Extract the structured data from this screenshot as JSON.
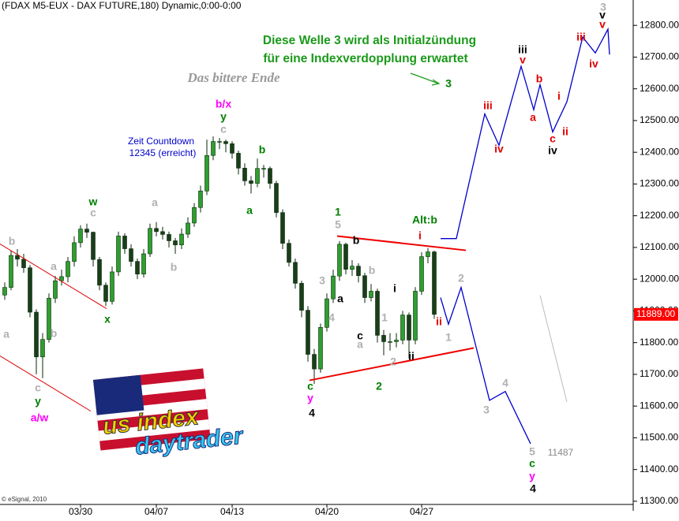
{
  "chart_data": {
    "type": "candlestick",
    "title": "(FDAX M5-EUX - DAX FUTURE,180) Dynamic,0:00-0:00",
    "categories": [
      null,
      null,
      null,
      null,
      null,
      null,
      null,
      null,
      null,
      null,
      null,
      null,
      "03/30",
      null,
      null,
      null,
      null,
      null,
      null,
      null,
      null,
      null,
      null,
      null,
      "04/07",
      null,
      null,
      null,
      null,
      null,
      null,
      null,
      null,
      null,
      null,
      null,
      "04/13",
      null,
      null,
      null,
      null,
      null,
      null,
      null,
      null,
      null,
      null,
      null,
      null,
      null,
      null,
      "04/20",
      null,
      null,
      null,
      null,
      null,
      null,
      null,
      null,
      null,
      null,
      null,
      null,
      null,
      null,
      "04/27",
      null,
      null
    ],
    "open": [
      11950,
      11974,
      12075,
      12063,
      12036,
      11896,
      11755,
      11810,
      11940,
      11995,
      12008,
      12056,
      12115,
      12158,
      12148,
      12062,
      11981,
      11930,
      12023,
      12136,
      12096,
      12056,
      12016,
      12080,
      12160,
      12150,
      12141,
      12121,
      12108,
      12142,
      12177,
      12226,
      12278,
      12390,
      12434,
      12434,
      12427,
      12397,
      12350,
      12310,
      12302,
      12349,
      12349,
      12302,
      12210,
      12113,
      12053,
      11987,
      11902,
      11763,
      11717,
      11848,
      11938,
      12010,
      12110,
      12031,
      12041,
      12011,
      11942,
      11962,
      11823,
      11803,
      11803,
      11808,
      11887,
      11808,
      11962,
      12071,
      12086
    ],
    "high": [
      11990,
      12090,
      12095,
      12080,
      12045,
      11905,
      11830,
      11955,
      12010,
      12030,
      12070,
      12135,
      12170,
      12175,
      12150,
      12070,
      11990,
      12040,
      12150,
      12145,
      12110,
      12065,
      12095,
      12175,
      12180,
      12165,
      12150,
      12130,
      12160,
      12195,
      12240,
      12295,
      12440,
      12450,
      12445,
      12440,
      12435,
      12405,
      12365,
      12325,
      12380,
      12360,
      12355,
      12310,
      12220,
      12125,
      12065,
      11995,
      11915,
      11780,
      11860,
      11955,
      12030,
      12120,
      12115,
      12060,
      12050,
      12020,
      11985,
      11970,
      11840,
      11830,
      11830,
      11900,
      11895,
      11975,
      12085,
      12098,
      12090
    ],
    "low": [
      11935,
      11965,
      12040,
      12020,
      11880,
      11700,
      11688,
      11800,
      11925,
      11980,
      11990,
      12040,
      12100,
      12130,
      12040,
      11965,
      11915,
      11920,
      12010,
      12080,
      12040,
      12000,
      12005,
      12070,
      12135,
      12125,
      12100,
      12080,
      12095,
      12130,
      12165,
      12210,
      12265,
      12375,
      12410,
      12400,
      12380,
      12330,
      12295,
      12270,
      12290,
      12320,
      12285,
      12195,
      12095,
      12040,
      11970,
      11880,
      11740,
      11670,
      11705,
      11835,
      11925,
      11995,
      12015,
      12010,
      11990,
      11925,
      11930,
      11800,
      11760,
      11775,
      11785,
      11795,
      11750,
      11795,
      11950,
      12050,
      11875
    ],
    "close": [
      11974,
      12075,
      12063,
      12036,
      11896,
      11755,
      11810,
      11940,
      11995,
      12008,
      12056,
      12115,
      12158,
      12148,
      12062,
      11981,
      11930,
      12023,
      12136,
      12096,
      12056,
      12016,
      12080,
      12160,
      12150,
      12141,
      12121,
      12108,
      12142,
      12177,
      12226,
      12278,
      12390,
      12434,
      12434,
      12427,
      12397,
      12350,
      12310,
      12302,
      12349,
      12349,
      12302,
      12210,
      12113,
      12053,
      11987,
      11902,
      11763,
      11717,
      11848,
      11938,
      12010,
      12110,
      12031,
      12041,
      12011,
      11942,
      11962,
      11823,
      11803,
      11803,
      11808,
      11887,
      11808,
      11962,
      12071,
      12086,
      11889
    ],
    "up_color": "#2f9e2f",
    "down_color": "#1a3d1a",
    "ylim": [
      11270,
      12880
    ],
    "yticks": [
      {
        "value": 11300,
        "label": "11300.00"
      },
      {
        "value": 11400,
        "label": "11400.00"
      },
      {
        "value": 11500,
        "label": "11500.00"
      },
      {
        "value": 11600,
        "label": "11600.00"
      },
      {
        "value": 11700,
        "label": "11700.00"
      },
      {
        "value": 11800,
        "label": "11800.00"
      },
      {
        "value": 11900,
        "label": "11900.00"
      },
      {
        "value": 12000,
        "label": "12000.00"
      },
      {
        "value": 12100,
        "label": "12100.00"
      },
      {
        "value": 12200,
        "label": "12200.00"
      },
      {
        "value": 12300,
        "label": "12300.00"
      },
      {
        "value": 12400,
        "label": "12400.00"
      },
      {
        "value": 12500,
        "label": "12500.00"
      },
      {
        "value": 12600,
        "label": "12600.00"
      },
      {
        "value": 12700,
        "label": "12700.00"
      },
      {
        "value": 12800,
        "label": "12800.00"
      }
    ],
    "last_price": {
      "value": 11889,
      "label": "11889.00"
    },
    "last_price_color": "#ff0000",
    "overlays": [
      {
        "color": "#0000cc",
        "values": [
          12128,
          12128,
          12521,
          12422,
          12671,
          12534,
          12613,
          12464,
          12559,
          12763,
          12713,
          12788,
          12708
        ]
      },
      {
        "color": "#0000cc",
        "values": [
          11942,
          11858,
          11974,
          11618,
          11646,
          11481
        ]
      },
      {
        "color": "#ee0000",
        "values": [
          12136,
          12091
        ]
      },
      {
        "color": "#ee0000",
        "values": [
          11681,
          11783
        ]
      },
      {
        "color": "#dd0000",
        "values": [
          12111,
          11907
        ]
      },
      {
        "color": "#dd0000",
        "values": [
          11758,
          11584
        ]
      },
      {
        "color": "#bbbbbb",
        "values": [
          11949,
          11613
        ]
      }
    ],
    "heading": [
      "Diese Welle 3 wird als Initialzündung",
      "für eine Indexverdopplung erwartet"
    ],
    "heading_color": "#1a9a1a",
    "subtitle": "Das bittere Ende",
    "countdown": [
      "Zeit Countdown",
      "12345 (erreicht)"
    ],
    "target_label": 11487,
    "copyright": "© eSignal, 2010",
    "logo": [
      "us index",
      "daytrader"
    ],
    "annotations": [
      {
        "text": "b",
        "color": "#b0b0b0"
      },
      {
        "text": "a",
        "color": "#b0b0b0"
      },
      {
        "text": "c",
        "color": "#b0b0b0"
      },
      {
        "text": "y",
        "color": "#008000"
      },
      {
        "text": "a/w",
        "color": "#ff00ff"
      },
      {
        "text": "a",
        "color": "#b0b0b0"
      },
      {
        "text": "b",
        "color": "#b0b0b0"
      },
      {
        "text": "w",
        "color": "#008000"
      },
      {
        "text": "c",
        "color": "#b0b0b0"
      },
      {
        "text": "x",
        "color": "#008000"
      },
      {
        "text": "a",
        "color": "#b0b0b0"
      },
      {
        "text": "b",
        "color": "#b0b0b0"
      },
      {
        "text": "b/x",
        "color": "#ff00ff"
      },
      {
        "text": "y",
        "color": "#008000"
      },
      {
        "text": "c",
        "color": "#b0b0b0"
      },
      {
        "text": "b",
        "color": "#008000"
      },
      {
        "text": "a",
        "color": "#008000"
      },
      {
        "text": "1",
        "color": "#008000"
      },
      {
        "text": "5",
        "color": "#b0b0b0"
      },
      {
        "text": "3",
        "color": "#b0b0b0"
      },
      {
        "text": "4",
        "color": "#b0b0b0"
      },
      {
        "text": "a",
        "color": "#000000"
      },
      {
        "text": "b",
        "color": "#000000"
      },
      {
        "text": "c",
        "color": "#000000"
      },
      {
        "text": "a",
        "color": "#b0b0b0"
      },
      {
        "text": "b",
        "color": "#b0b0b0"
      },
      {
        "text": "1",
        "color": "#b0b0b0"
      },
      {
        "text": "i",
        "color": "#000000"
      },
      {
        "text": "2",
        "color": "#b0b0b0"
      },
      {
        "text": "2",
        "color": "#008000"
      },
      {
        "text": "ii",
        "color": "#000000"
      },
      {
        "text": "i",
        "color": "#e00000"
      },
      {
        "text": "ii",
        "color": "#e00000"
      },
      {
        "text": "1",
        "color": "#b0b0b0"
      },
      {
        "text": "2",
        "color": "#b0b0b0"
      },
      {
        "text": "3",
        "color": "#b0b0b0"
      },
      {
        "text": "4",
        "color": "#b0b0b0"
      },
      {
        "text": "5",
        "color": "#b0b0b0"
      },
      {
        "text": "c",
        "color": "#008000"
      },
      {
        "text": "y",
        "color": "#ff00ff"
      },
      {
        "text": "4",
        "color": "#000000"
      },
      {
        "text": "c",
        "color": "#008000"
      },
      {
        "text": "y",
        "color": "#ff00ff"
      },
      {
        "text": "4",
        "color": "#000000"
      },
      {
        "text": "Alt:b",
        "color": "#008000"
      },
      {
        "text": "3",
        "color": "#008000"
      },
      {
        "text": "iii",
        "color": "#e00000"
      },
      {
        "text": "iv",
        "color": "#e00000"
      },
      {
        "text": "iii",
        "color": "#000000"
      },
      {
        "text": "v",
        "color": "#e00000"
      },
      {
        "text": "b",
        "color": "#e00000"
      },
      {
        "text": "a",
        "color": "#e00000"
      },
      {
        "text": "i",
        "color": "#e00000"
      },
      {
        "text": "ii",
        "color": "#e00000"
      },
      {
        "text": "c",
        "color": "#e00000"
      },
      {
        "text": "iv",
        "color": "#000000"
      },
      {
        "text": "iii",
        "color": "#e00000"
      },
      {
        "text": "iv",
        "color": "#e00000"
      },
      {
        "text": "3",
        "color": "#b0b0b0"
      },
      {
        "text": "v",
        "color": "#000000"
      },
      {
        "text": "v",
        "color": "#e00000"
      }
    ]
  }
}
